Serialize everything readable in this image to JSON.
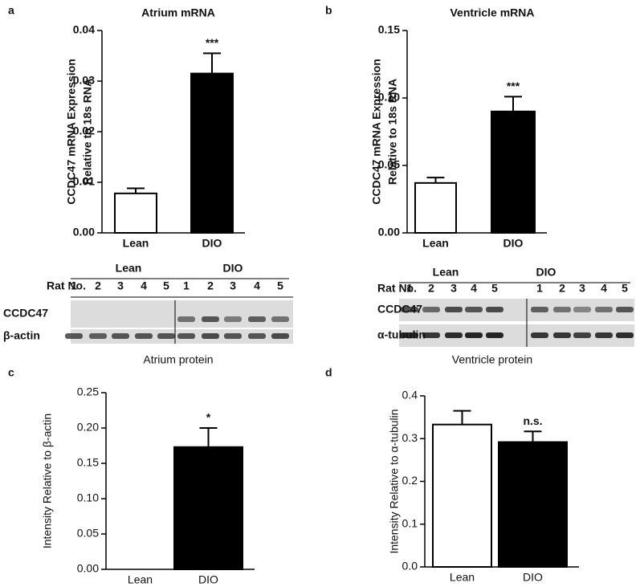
{
  "chart_data": [
    {
      "type": "bar",
      "label": "a",
      "title": "Atrium mRNA",
      "ylabel": [
        "CCDC47 mRNA Expression",
        "Relative to 18s RNA"
      ],
      "categories": [
        "Lean",
        "DIO"
      ],
      "values": [
        0.0078,
        0.0315
      ],
      "errors": [
        0.001,
        0.004
      ],
      "annotations": [
        null,
        "***"
      ],
      "colors": [
        "#ffffff",
        "#000000"
      ],
      "ylim": [
        0,
        0.04
      ],
      "yticks": [
        {
          "value": 0,
          "label": "0.00"
        },
        {
          "value": 0.01,
          "label": "0.01"
        },
        {
          "value": 0.02,
          "label": "0.02"
        },
        {
          "value": 0.03,
          "label": "0.03"
        },
        {
          "value": 0.04,
          "label": "0.04"
        }
      ]
    },
    {
      "type": "bar",
      "label": "b",
      "title": "Ventricle mRNA",
      "ylabel": [
        "CCDC47 mRNA Expression",
        "Relative to 18s RNA"
      ],
      "categories": [
        "Lean",
        "DIO"
      ],
      "values": [
        0.037,
        0.09
      ],
      "errors": [
        0.004,
        0.011
      ],
      "annotations": [
        null,
        "***"
      ],
      "colors": [
        "#ffffff",
        "#000000"
      ],
      "ylim": [
        0,
        0.15
      ],
      "yticks": [
        {
          "value": 0,
          "label": "0.00"
        },
        {
          "value": 0.05,
          "label": "0.05"
        },
        {
          "value": 0.1,
          "label": "0.10"
        },
        {
          "value": 0.15,
          "label": "0.15"
        }
      ]
    },
    {
      "type": "bar",
      "label": "c",
      "title": "Atrium protein",
      "ylabel": [
        "Intensity Relative to β-actin"
      ],
      "categories": [
        "Lean",
        "DIO"
      ],
      "values": [
        0,
        0.173
      ],
      "errors": [
        0,
        0.027
      ],
      "annotations": [
        null,
        "*"
      ],
      "colors": [
        "#ffffff",
        "#000000"
      ],
      "ylim": [
        0,
        0.25
      ],
      "yticks": [
        {
          "value": 0,
          "label": "0.00"
        },
        {
          "value": 0.05,
          "label": "0.05"
        },
        {
          "value": 0.1,
          "label": "0.10"
        },
        {
          "value": 0.15,
          "label": "0.15"
        },
        {
          "value": 0.2,
          "label": "0.20"
        },
        {
          "value": 0.25,
          "label": "0.25"
        }
      ]
    },
    {
      "type": "bar",
      "label": "d",
      "title": "Ventricle protein",
      "ylabel": [
        "Intensity Relative to α-tubulin"
      ],
      "categories": [
        "Lean",
        "DIO"
      ],
      "values": [
        0.333,
        0.292
      ],
      "errors": [
        0.032,
        0.025
      ],
      "annotations": [
        null,
        "n.s."
      ],
      "colors": [
        "#ffffff",
        "#000000"
      ],
      "ylim": [
        0,
        0.4
      ],
      "yticks": [
        {
          "value": 0,
          "label": "0.0"
        },
        {
          "value": 0.1,
          "label": "0.1"
        },
        {
          "value": 0.2,
          "label": "0.2"
        },
        {
          "value": 0.3,
          "label": "0.3"
        },
        {
          "value": 0.4,
          "label": "0.4"
        }
      ]
    }
  ],
  "blots": [
    {
      "groups": [
        "Lean",
        "DIO"
      ],
      "row_header": "Rat No.",
      "lanes": [
        1,
        2,
        3,
        4,
        5,
        1,
        2,
        3,
        4,
        5
      ],
      "rows": [
        "CCDC47",
        "β-actin"
      ]
    },
    {
      "groups": [
        "Lean",
        "DIO"
      ],
      "row_header": "Rat No.",
      "lanes": [
        1,
        2,
        3,
        4,
        5,
        1,
        2,
        3,
        4,
        5
      ],
      "rows": [
        "CCDC47",
        "α-tubulin"
      ]
    }
  ]
}
